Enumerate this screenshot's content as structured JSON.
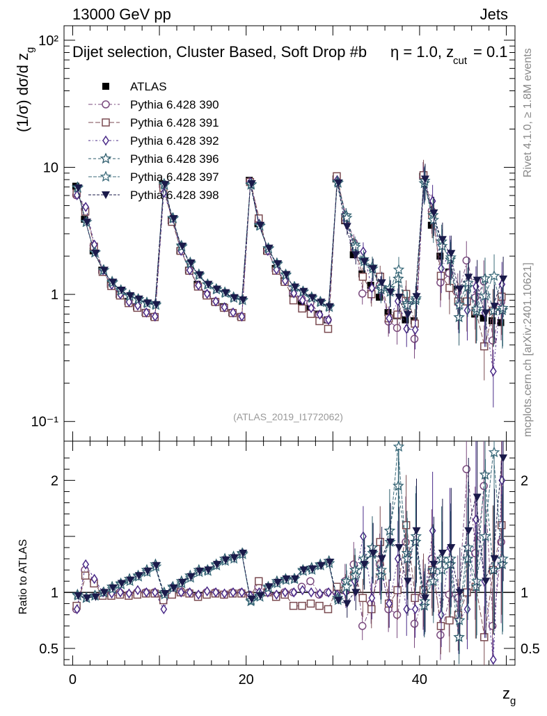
{
  "header": {
    "energy_label": "13000 GeV pp",
    "process_label": "Jets",
    "selection_label": "Dijet selection, Cluster Based, Soft Drop #b",
    "cut_label": "η = 1.0, z",
    "cut_sub": "cut",
    "cut_value": " = 0.1",
    "side_rivet": "Rivet 4.1.0, ≥ 1.8M events",
    "side_mcplots": "mcplots.cern.ch [arXiv:2401.10621]",
    "analysis_id": "(ATLAS_2019_I1772062)"
  },
  "chart_data": {
    "type": "scatter",
    "title": "Dijet selection, Cluster Based, Soft Drop #b η = 1.0, z_cut = 0.1",
    "xlabel": "z",
    "xlabel_sub": "g",
    "ylabel": "(1/σ) dσ/d z",
    "ylabel_sub": "g",
    "ratio_ylabel": "Ratio to ATLAS",
    "xlim": [
      -1,
      51
    ],
    "ylim": [
      0.07,
      130
    ],
    "yscale": "log",
    "ratio_ylim": [
      0.35,
      2.35
    ],
    "x_ticks": [
      "0",
      "20",
      "40"
    ],
    "y_tick_labels": [
      "10⁻¹",
      "1",
      "10",
      "10²"
    ],
    "ratio_tick_labels": [
      "0.5",
      "1",
      "2"
    ],
    "x": [
      0.5,
      1.5,
      2.5,
      3.5,
      4.5,
      5.5,
      6.5,
      7.5,
      8.5,
      9.5,
      10.5,
      11.5,
      12.5,
      13.5,
      14.5,
      15.5,
      16.5,
      17.5,
      18.5,
      19.5,
      20.5,
      21.5,
      22.5,
      23.5,
      24.5,
      25.5,
      26.5,
      27.5,
      28.5,
      29.5,
      30.5,
      31.5,
      32.5,
      33.5,
      34.5,
      35.5,
      36.5,
      37.5,
      38.5,
      39.5,
      40.5,
      41.5,
      42.5,
      43.5,
      44.5,
      45.5,
      46.5,
      47.5,
      48.5,
      49.5
    ],
    "series": [
      {
        "name": "ATLAS",
        "color": "#000000",
        "marker": "filled-square",
        "values": [
          7.1,
          3.9,
          2.2,
          1.55,
          1.2,
          1.0,
          0.88,
          0.8,
          0.72,
          0.67,
          7.4,
          3.8,
          2.2,
          1.55,
          1.2,
          1.0,
          0.88,
          0.8,
          0.72,
          0.67,
          7.9,
          3.6,
          2.2,
          1.6,
          1.28,
          1.02,
          0.88,
          0.78,
          0.7,
          0.63,
          8.1,
          3.8,
          2.05,
          1.45,
          1.18,
          0.95,
          0.72,
          0.68,
          0.63,
          0.62,
          8.5,
          3.5,
          2.0,
          1.5,
          1.1,
          0.88,
          0.7,
          0.65,
          0.62,
          0.6
        ]
      },
      {
        "name": "Pythia 6.428 390",
        "color": "#7a4a7e",
        "marker": "open-circle",
        "ratio": [
          0.85,
          1.2,
          1.1,
          0.98,
          0.98,
          1.0,
          0.98,
          1.0,
          1.0,
          1.0,
          0.95,
          1.0,
          1.02,
          1.0,
          0.97,
          1.0,
          1.0,
          0.98,
          1.0,
          1.0,
          0.98,
          1.05,
          1.0,
          0.97,
          1.0,
          1.0,
          1.05,
          1.1,
          0.98,
          1.0,
          1.0,
          1.1,
          1.25,
          0.7,
          0.9,
          1.25,
          0.85,
          0.8,
          1.45,
          0.72,
          0.98,
          1.3,
          0.62,
          0.98,
          0.95,
          2.1,
          1.35,
          1.95,
          0.7,
          1.45
        ]
      },
      {
        "name": "Pythia 6.428 391",
        "color": "#7a4a50",
        "marker": "open-square",
        "ratio": [
          0.88,
          1.15,
          1.08,
          0.97,
          0.97,
          0.98,
          0.97,
          0.98,
          0.99,
          0.99,
          0.93,
          0.98,
          1.0,
          0.99,
          0.96,
          0.98,
          0.99,
          0.98,
          0.99,
          0.99,
          0.97,
          1.1,
          1.0,
          0.96,
          0.98,
          0.88,
          0.88,
          0.9,
          0.88,
          0.85,
          1.05,
          1.02,
          1.15,
          0.95,
          0.85,
          1.45,
          0.9,
          1.02,
          1.6,
          0.95,
          1.02,
          1.2,
          0.7,
          0.75,
          0.8,
          1.0,
          1.05,
          0.6,
          1.2,
          1.6
        ]
      },
      {
        "name": "Pythia 6.428 392",
        "color": "#4a2a88",
        "marker": "open-diamond",
        "ratio": [
          0.85,
          1.25,
          1.12,
          1.0,
          0.99,
          1.0,
          0.99,
          1.02,
          1.0,
          1.0,
          0.85,
          1.05,
          1.0,
          1.0,
          0.98,
          1.01,
          1.0,
          0.99,
          1.0,
          1.0,
          0.97,
          1.0,
          1.0,
          0.98,
          1.0,
          1.0,
          1.02,
          1.0,
          0.99,
          1.0,
          0.98,
          1.0,
          1.1,
          1.5,
          0.95,
          1.2,
          0.9,
          1.3,
          0.85,
          0.85,
          0.9,
          1.55,
          0.8,
          1.4,
          0.75,
          0.85,
          1.65,
          1.1,
          0.4,
          2.0
        ]
      },
      {
        "name": "Pythia 6.428 396",
        "color": "#2a5a6a",
        "marker": "open-star",
        "ratio": [
          0.98,
          0.95,
          0.97,
          1.0,
          1.05,
          1.08,
          1.12,
          1.15,
          1.2,
          1.25,
          1.0,
          1.05,
          1.1,
          1.15,
          1.2,
          1.2,
          1.25,
          1.3,
          1.32,
          1.35,
          0.92,
          0.97,
          1.05,
          1.1,
          1.12,
          1.12,
          1.2,
          1.22,
          1.25,
          1.28,
          0.95,
          1.1,
          1.2,
          1.3,
          1.4,
          1.15,
          1.55,
          1.95,
          1.35,
          1.45,
          0.88,
          1.2,
          1.3,
          1.25,
          0.6,
          1.3,
          1.05,
          2.05,
          1.2,
          1.25
        ]
      },
      {
        "name": "Pythia 6.428 397",
        "color": "#3a6a7a",
        "marker": "open-star",
        "ratio": [
          0.97,
          0.95,
          0.97,
          1.0,
          1.03,
          1.07,
          1.1,
          1.14,
          1.18,
          1.23,
          0.98,
          1.04,
          1.08,
          1.13,
          1.18,
          1.19,
          1.24,
          1.28,
          1.3,
          1.34,
          0.93,
          0.96,
          1.04,
          1.08,
          1.11,
          1.12,
          1.19,
          1.2,
          1.24,
          1.26,
          0.93,
          1.05,
          1.15,
          1.25,
          1.35,
          1.2,
          1.45,
          2.3,
          1.3,
          1.5,
          0.92,
          1.1,
          1.2,
          1.3,
          0.75,
          1.4,
          1.1,
          1.5,
          2.25,
          1.3
        ]
      },
      {
        "name": "Pythia 6.428 398",
        "color": "#1a1a4a",
        "marker": "filled-triangle-down",
        "ratio": [
          0.97,
          0.95,
          0.96,
          1.0,
          1.04,
          1.08,
          1.11,
          1.15,
          1.19,
          1.24,
          0.99,
          1.04,
          1.09,
          1.14,
          1.19,
          1.2,
          1.25,
          1.29,
          1.31,
          1.35,
          0.94,
          0.97,
          1.05,
          1.09,
          1.12,
          1.12,
          1.2,
          1.21,
          1.24,
          1.27,
          0.93,
          0.9,
          1.0,
          1.25,
          1.35,
          1.3,
          1.45,
          1.4,
          1.1,
          1.55,
          0.95,
          1.25,
          1.35,
          1.4,
          1.0,
          1.55,
          1.85,
          1.1,
          1.3,
          2.2
        ]
      }
    ]
  }
}
